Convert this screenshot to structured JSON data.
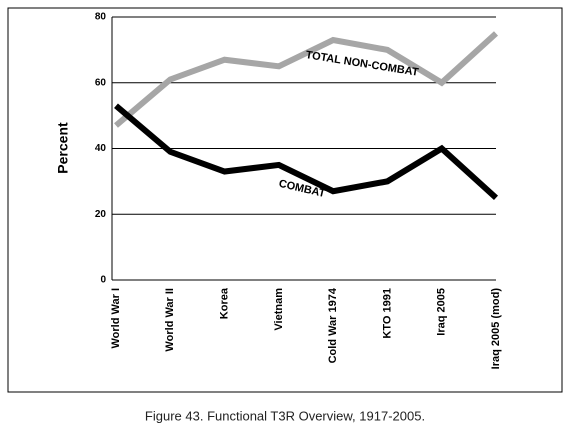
{
  "chart_data": {
    "type": "line",
    "caption": "Figure 43. Functional T3R Overview, 1917-2005.",
    "y_label": "Percent",
    "categories": [
      "World War I",
      "World War II",
      "Korea",
      "Vietnam",
      "Cold War 1974",
      "KTO 1991",
      "Iraq 2005",
      "Iraq 2005 (mod)"
    ],
    "series": [
      {
        "name": "TOTAL NON-COMBAT",
        "color": "#a6a6a6",
        "values": [
          47,
          61,
          67,
          65,
          73,
          70,
          60,
          75
        ]
      },
      {
        "name": "COMBAT",
        "color": "#000000",
        "values": [
          53,
          39,
          33,
          35,
          27,
          30,
          40,
          25
        ]
      }
    ],
    "ylim": [
      0,
      80
    ],
    "yticks": [
      0,
      20,
      40,
      60,
      80
    ],
    "grid": true
  }
}
